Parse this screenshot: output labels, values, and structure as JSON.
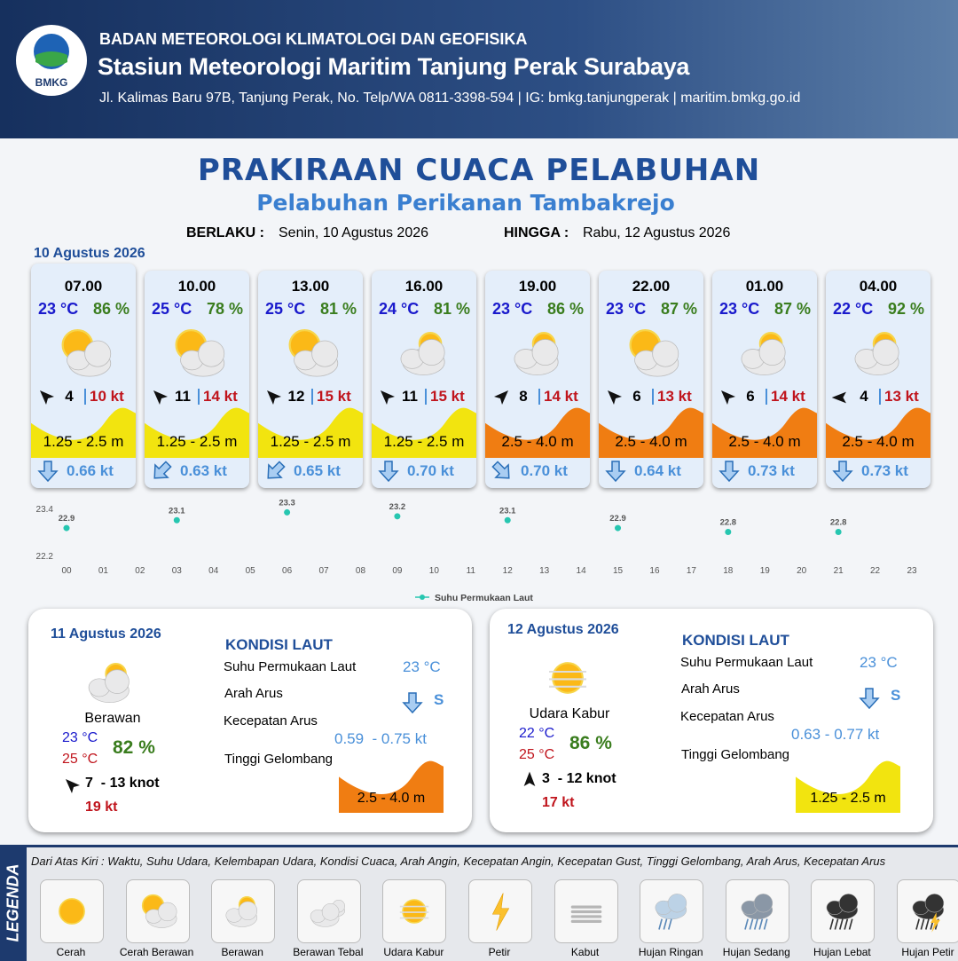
{
  "header": {
    "logo": "BMKG",
    "agency": "BADAN METEOROLOGI KLIMATOLOGI DAN GEOFISIKA",
    "station": "Stasiun Meteorologi Maritim Tanjung Perak Surabaya",
    "address": "Jl. Kalimas Baru 97B, Tanjung Perak, No. Telp/WA 0811-3398-594 | IG: bmkg.tanjungperak | maritim.bmkg.go.id"
  },
  "title": "PRAKIRAAN CUACA PELABUHAN",
  "subtitle": "Pelabuhan Perikanan Tambakrejo",
  "validity": {
    "from_label": "BERLAKU :",
    "from": "Senin, 10 Agustus 2026",
    "to_label": "HINGGA :",
    "to": "Rabu, 12 Agustus 2026"
  },
  "date": "10 Agustus 2026",
  "cards": [
    {
      "time": "07.00",
      "temp": "23 °C",
      "humidity": "86 %",
      "wind": "4",
      "gust": "10 kt",
      "wave": "1.25 - 2.5 m",
      "wave_color": "#f2e40f",
      "current": "0.66 kt"
    },
    {
      "time": "10.00",
      "temp": "25 °C",
      "humidity": "78 %",
      "wind": "11",
      "gust": "14 kt",
      "wave": "1.25 - 2.5 m",
      "wave_color": "#f2e40f",
      "current": "0.63 kt"
    },
    {
      "time": "13.00",
      "temp": "25 °C",
      "humidity": "81 %",
      "wind": "12",
      "gust": "15 kt",
      "wave": "1.25 - 2.5 m",
      "wave_color": "#f2e40f",
      "current": "0.65 kt"
    },
    {
      "time": "16.00",
      "temp": "24 °C",
      "humidity": "81 %",
      "wind": "11",
      "gust": "15 kt",
      "wave": "1.25 - 2.5 m",
      "wave_color": "#f2e40f",
      "current": "0.70 kt"
    },
    {
      "time": "19.00",
      "temp": "23 °C",
      "humidity": "86 %",
      "wind": "8",
      "gust": "14 kt",
      "wave": "2.5 - 4.0 m",
      "wave_color": "#f07d12",
      "current": "0.70 kt"
    },
    {
      "time": "22.00",
      "temp": "23 °C",
      "humidity": "87 %",
      "wind": "6",
      "gust": "13 kt",
      "wave": "2.5 - 4.0 m",
      "wave_color": "#f07d12",
      "current": "0.64 kt"
    },
    {
      "time": "01.00",
      "temp": "23 °C",
      "humidity": "87 %",
      "wind": "6",
      "gust": "14 kt",
      "wave": "2.5 - 4.0 m",
      "wave_color": "#f07d12",
      "current": "0.73 kt"
    },
    {
      "time": "04.00",
      "temp": "22 °C",
      "humidity": "92 %",
      "wind": "4",
      "gust": "13 kt",
      "wave": "2.5 - 4.0 m",
      "wave_color": "#f07d12",
      "current": "0.73 kt"
    }
  ],
  "chart_data": {
    "type": "scatter",
    "x": [
      0,
      3,
      6,
      9,
      12,
      15,
      18,
      21
    ],
    "series": [
      {
        "name": "Suhu Permukaan Laut",
        "color": "#26c6b0",
        "values": [
          22.9,
          23.1,
          23.3,
          23.2,
          23.1,
          22.9,
          22.8,
          22.8
        ]
      }
    ],
    "xlim": [
      0,
      23
    ],
    "xticks": [
      {
        "value": 0,
        "label": "00"
      },
      {
        "value": 1,
        "label": "01"
      },
      {
        "value": 2,
        "label": "02"
      },
      {
        "value": 3,
        "label": "03"
      },
      {
        "value": 4,
        "label": "04"
      },
      {
        "value": 5,
        "label": "05"
      },
      {
        "value": 6,
        "label": "06"
      },
      {
        "value": 7,
        "label": "07"
      },
      {
        "value": 8,
        "label": "08"
      },
      {
        "value": 9,
        "label": "09"
      },
      10,
      11,
      12,
      13,
      14,
      15,
      16,
      17,
      18,
      19,
      20,
      21,
      22,
      23
    ],
    "ylim": [
      22.2,
      23.4
    ],
    "yticks": [
      22.2,
      23.4
    ]
  },
  "days": [
    {
      "date": "11 Agustus 2026",
      "condition": "Berawan",
      "temp_min": "23 °C",
      "temp_max": "25 °C",
      "humidity": "82 %",
      "wind": "7  - 13 knot",
      "gust": "19 kt",
      "sea_title": "KONDISI LAUT",
      "sst_label": "Suhu Permukaan Laut",
      "sst": "23 °C",
      "dir_label": "Arah Arus",
      "dir": "S",
      "speed_label": "Kecepatan Arus",
      "speed": "0.59  - 0.75 kt",
      "wave_label": "Tinggi Gelombang",
      "wave": "2.5 - 4.0 m",
      "wave_color": "#f07d12"
    },
    {
      "date": "12 Agustus 2026",
      "condition": "Udara Kabur",
      "temp_min": "22 °C",
      "temp_max": "25 °C",
      "humidity": "86 %",
      "wind": "3  - 12 knot",
      "gust": "17 kt",
      "sea_title": "KONDISI LAUT",
      "sst_label": "Suhu Permukaan Laut",
      "sst": "23 °C",
      "dir_label": "Arah Arus",
      "dir": "S",
      "speed_label": "Kecepatan Arus",
      "speed": "0.63 - 0.77 kt",
      "wave_label": "Tinggi Gelombang",
      "wave": "1.25 - 2.5 m",
      "wave_color": "#f2e40f"
    }
  ],
  "legend": {
    "title": "LEGENDA",
    "description": "Dari Atas Kiri : Waktu, Suhu Udara, Kelembapan Udara, Kondisi Cuaca, Arah Angin, Kecepatan Angin, Kecepatan Gust, Tinggi Gelombang, Arah Arus, Kecepatan Arus",
    "items": [
      "Cerah",
      "Cerah Berawan",
      "Berawan",
      "Berawan Tebal",
      "Udara Kabur",
      "Petir",
      "Kabut",
      "Hujan Ringan",
      "Hujan Sedang",
      "Hujan Lebat",
      "Hujan Petir"
    ]
  }
}
